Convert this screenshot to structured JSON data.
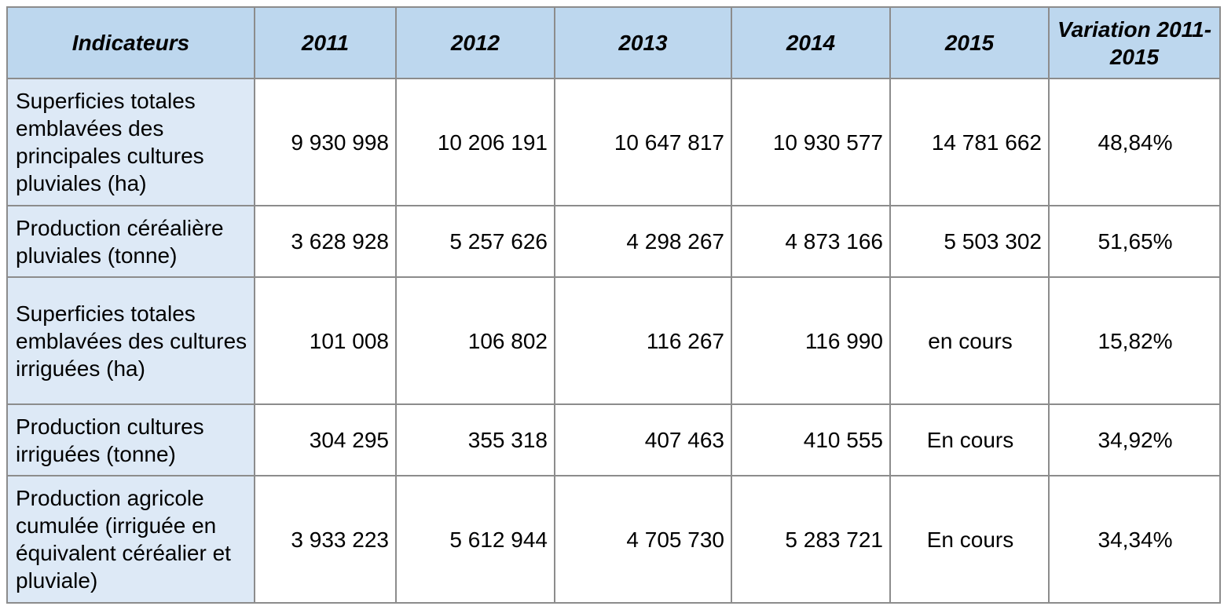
{
  "table": {
    "headers": [
      "Indicateurs",
      "2011",
      "2012",
      "2013",
      "2014",
      "2015",
      "Variation 2011-2015"
    ],
    "rows": [
      {
        "label": "Superficies totales emblavées des principales cultures pluviales (ha)",
        "values": [
          "9 930 998",
          "10 206 191",
          "10 647 817",
          "10 930 577",
          "14 781 662"
        ],
        "variation": "48,84%"
      },
      {
        "label": "Production céréalière pluviales (tonne)",
        "values": [
          "3 628 928",
          "5 257 626",
          "4 298 267",
          "4 873 166",
          "5 503 302"
        ],
        "variation": "51,65%"
      },
      {
        "label": "Superficies totales emblavées des cultures irriguées (ha)",
        "values": [
          "101 008",
          "106 802",
          "116 267",
          "116 990",
          "en cours"
        ],
        "variation": "15,82%"
      },
      {
        "label": "Production cultures irriguées (tonne)",
        "values": [
          "304 295",
          "355 318",
          "407 463",
          "410 555",
          "En cours"
        ],
        "variation": "34,92%"
      },
      {
        "label": "Production agricole cumulée (irriguée en équivalent céréalier et pluviale)",
        "values": [
          "3 933 223",
          "5 612 944",
          "4 705 730",
          "5 283 721",
          "En cours"
        ],
        "variation": "34,34%"
      }
    ]
  },
  "colors": {
    "header_bg": "#bdd7ee",
    "label_bg": "#dde9f6",
    "border": "#8c8c8c"
  }
}
